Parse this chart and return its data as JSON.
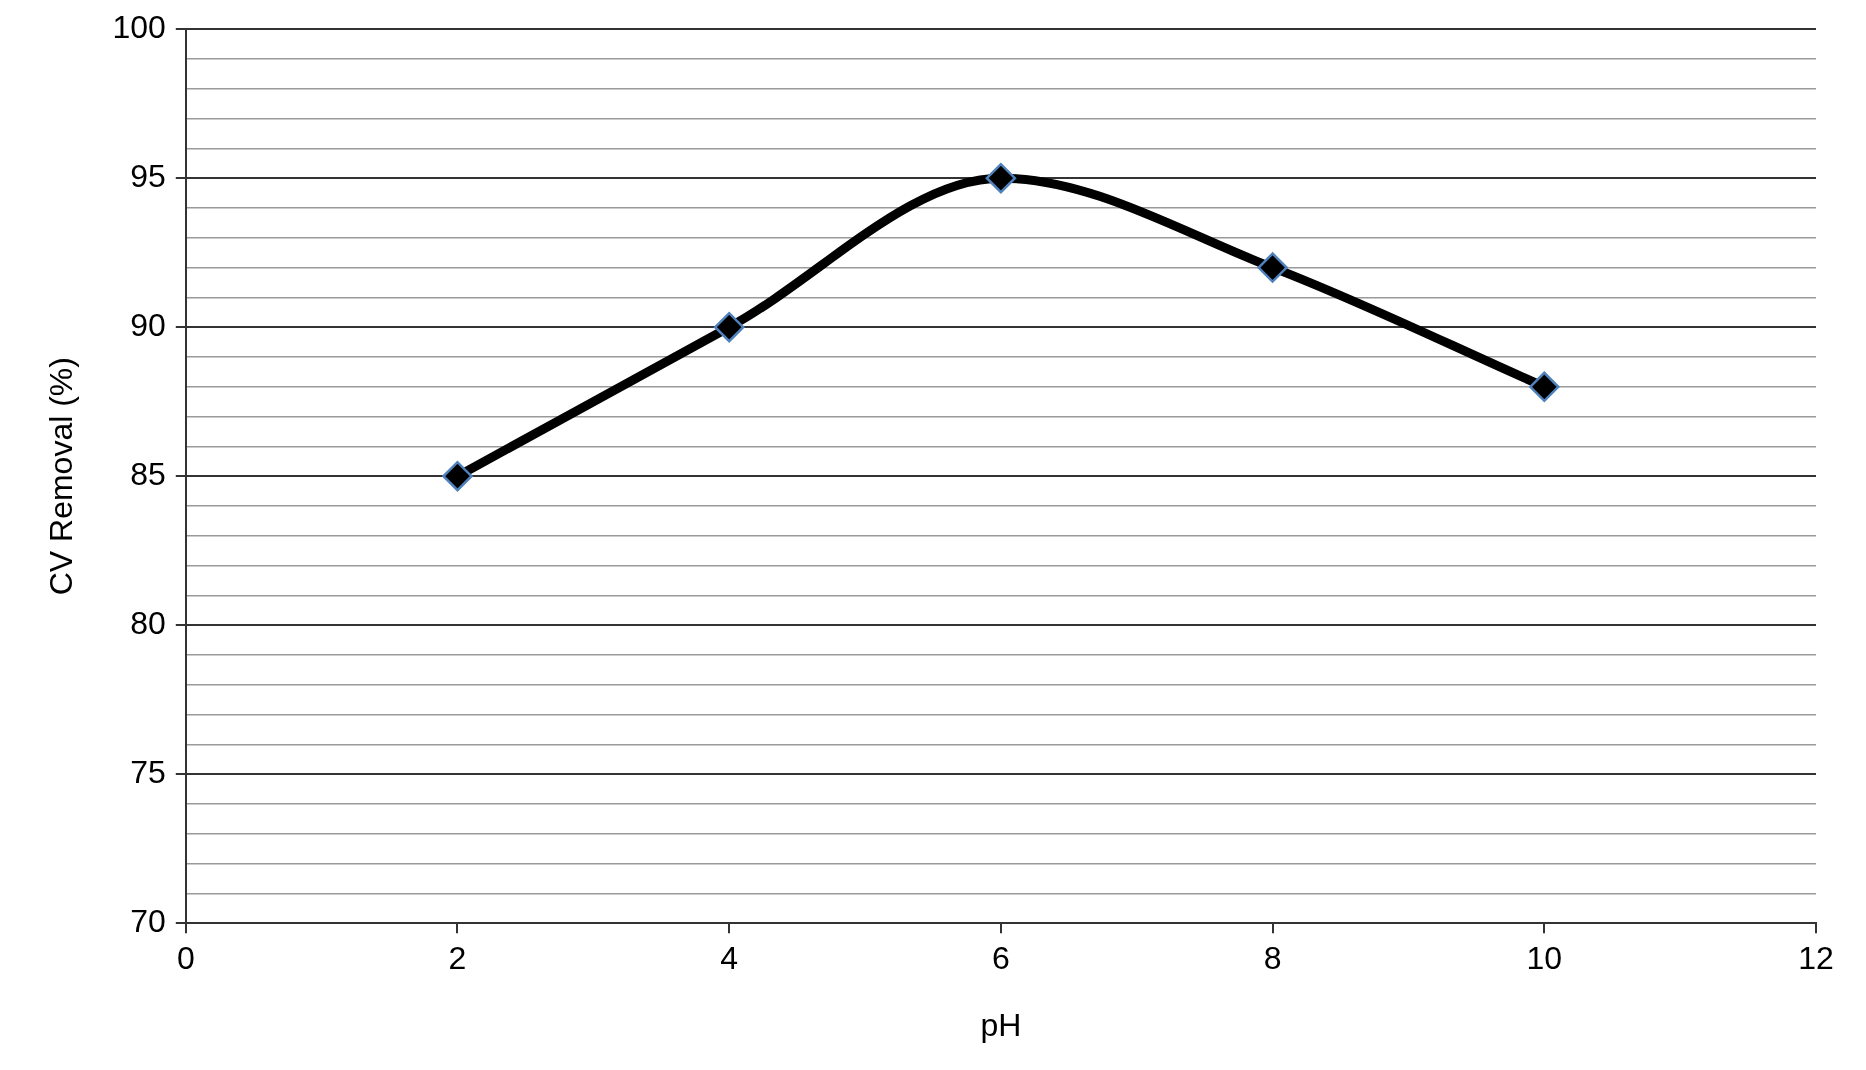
{
  "chart_data": {
    "type": "line",
    "xlabel": "pH",
    "ylabel": "CV Removal (%)",
    "x": [
      2,
      4,
      6,
      8,
      10
    ],
    "series": [
      {
        "color": "#000000",
        "values": [
          85,
          90,
          95,
          92,
          88
        ]
      }
    ],
    "xlim": [
      0,
      12
    ],
    "xticks": [
      0,
      2,
      4,
      6,
      8,
      10,
      12
    ],
    "ylim": [
      70,
      100
    ],
    "yticks": [
      70,
      {
        "value": 71,
        "label": null
      },
      {
        "value": 72,
        "label": null
      },
      {
        "value": 73,
        "label": null
      },
      {
        "value": 74,
        "label": null
      },
      75,
      {
        "value": 76,
        "label": null
      },
      {
        "value": 77,
        "label": null
      },
      {
        "value": 78,
        "label": null
      },
      {
        "value": 79,
        "label": null
      },
      80,
      {
        "value": 81,
        "label": null
      },
      {
        "value": 82,
        "label": null
      },
      {
        "value": 83,
        "label": null
      },
      {
        "value": 84,
        "label": null
      },
      85,
      {
        "value": 86,
        "label": null
      },
      {
        "value": 87,
        "label": null
      },
      {
        "value": 88,
        "label": null
      },
      {
        "value": 89,
        "label": null
      },
      90,
      {
        "value": 91,
        "label": null
      },
      {
        "value": 92,
        "label": null
      },
      {
        "value": 93,
        "label": null
      },
      {
        "value": 94,
        "label": null
      },
      95,
      {
        "value": 96,
        "label": null
      },
      {
        "value": 97,
        "label": null
      },
      {
        "value": 98,
        "label": null
      },
      {
        "value": 99,
        "label": null
      },
      100
    ],
    "grid": "y",
    "legend": false,
    "marker": "diamond",
    "line_style": "solid"
  }
}
